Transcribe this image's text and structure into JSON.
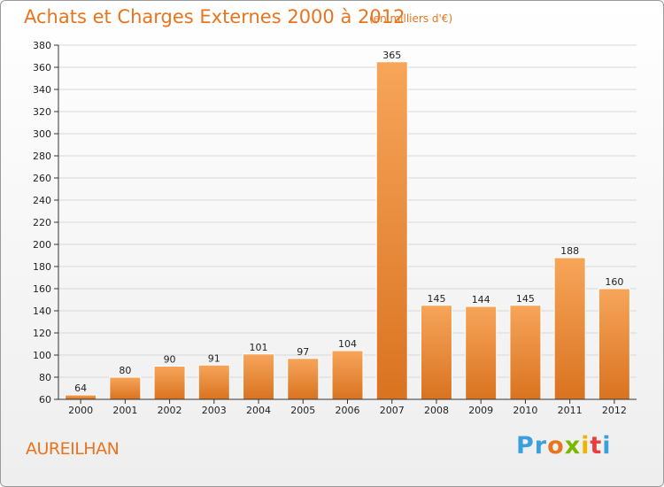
{
  "title": "Achats et Charges Externes 2000 à 2012",
  "subtitle": "(en milliers d'€)",
  "commune": "AUREILHAN",
  "logo": {
    "letters": [
      "P",
      "r",
      "o",
      "x",
      "i",
      "t",
      "i"
    ],
    "colors": [
      "#3aa0dc",
      "#3aa0dc",
      "#e8741e",
      "#7ab800",
      "#f0b400",
      "#e83e3e",
      "#3aa0dc"
    ]
  },
  "colors": {
    "accent": "#e8741e",
    "bar_light": "#f7a55a",
    "bar_dark": "#d97320",
    "grid": "#d8d8d8",
    "axis": "#333333"
  },
  "chart_data": {
    "type": "bar",
    "title": "Achats et Charges Externes 2000 à 2012",
    "subtitle": "(en milliers d'€)",
    "categories": [
      "2000",
      "2001",
      "2002",
      "2003",
      "2004",
      "2005",
      "2006",
      "2007",
      "2008",
      "2009",
      "2010",
      "2011",
      "2012"
    ],
    "values": [
      64,
      80,
      90,
      91,
      101,
      97,
      104,
      365,
      145,
      144,
      145,
      188,
      160
    ],
    "ylim": [
      60,
      380
    ],
    "ytick_step": 20,
    "grid": true,
    "data_labels": true
  }
}
